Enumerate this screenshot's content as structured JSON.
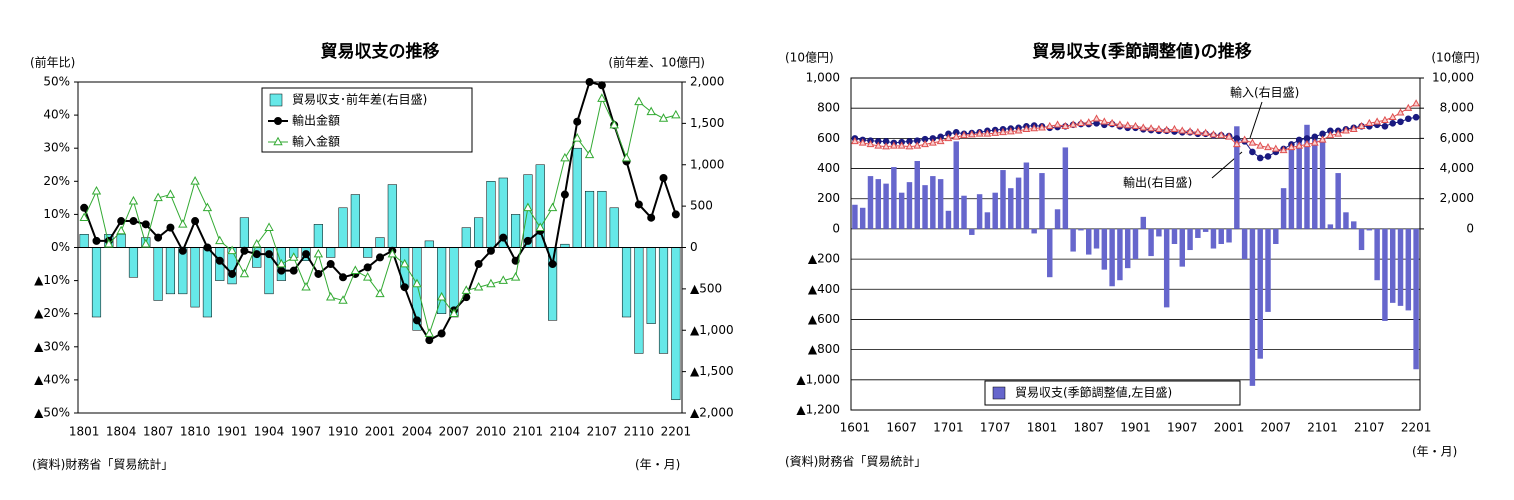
{
  "chart_data": [
    {
      "type": "combo",
      "title": "貿易収支の推移",
      "y_label": "(前年比)",
      "y2_label": "(前年差、10億円)",
      "x_unit": "(年・月)",
      "source": "(資料)財務省「貿易統計」",
      "categories": [
        "1801",
        null,
        null,
        "1804",
        null,
        null,
        "1807",
        null,
        null,
        "1810",
        null,
        null,
        "1901",
        null,
        null,
        "1904",
        null,
        null,
        "1907",
        null,
        null,
        "1910",
        null,
        null,
        "2001",
        null,
        null,
        "2004",
        null,
        null,
        "2007",
        null,
        null,
        "2010",
        null,
        null,
        "2101",
        null,
        null,
        "2104",
        null,
        null,
        "2107",
        null,
        null,
        "2110",
        null,
        null,
        "2201"
      ],
      "ylim": [
        -50,
        50
      ],
      "yticks": [
        {
          "value": 50,
          "label": "50%"
        },
        {
          "value": 40,
          "label": "40%"
        },
        {
          "value": 30,
          "label": "30%"
        },
        {
          "value": 20,
          "label": "20%"
        },
        {
          "value": 10,
          "label": "10%"
        },
        {
          "value": 0,
          "label": "0%"
        },
        {
          "value": -10,
          "label": "▲10%"
        },
        {
          "value": -20,
          "label": "▲20%"
        },
        {
          "value": -30,
          "label": "▲30%"
        },
        {
          "value": -40,
          "label": "▲40%"
        },
        {
          "value": -50,
          "label": "▲50%"
        }
      ],
      "y2lim": [
        -2000,
        2000
      ],
      "y2ticks": [
        {
          "value": 2000,
          "label": "2,000"
        },
        {
          "value": 1500,
          "label": "1,500"
        },
        {
          "value": 1000,
          "label": "1,000"
        },
        500,
        0,
        {
          "value": -500,
          "label": "▲500"
        },
        {
          "value": -1000,
          "label": "▲1,000"
        },
        {
          "value": -1500,
          "label": "▲1,500"
        },
        {
          "value": -2000,
          "label": "▲2,000"
        }
      ],
      "grid": false,
      "series": [
        {
          "name": "貿易収支･前年差(右目盛)",
          "type": "bar",
          "axis": "y2",
          "color": "#66e8e8",
          "values": [
            160,
            -840,
            160,
            160,
            -360,
            120,
            -640,
            -560,
            -560,
            -720,
            -840,
            -400,
            -440,
            360,
            -240,
            -560,
            -400,
            -120,
            -160,
            280,
            -120,
            480,
            640,
            -120,
            120,
            760,
            -480,
            -1000,
            80,
            -800,
            -840,
            240,
            360,
            800,
            840,
            400,
            880,
            1000,
            -880,
            40,
            1200,
            680,
            680,
            480,
            -840,
            -1280,
            -920,
            -1280,
            -1840
          ]
        },
        {
          "name": "輸出金額",
          "type": "line",
          "marker": "circle",
          "axis": "y",
          "color": "#000000",
          "values": [
            12,
            2,
            2,
            8,
            8,
            7,
            3,
            6,
            -1,
            8,
            0,
            -4,
            -8,
            -1,
            -2,
            -2,
            -7,
            -7,
            -2,
            -8,
            -5,
            -9,
            -8,
            -6,
            -3,
            -1,
            -12,
            -22,
            -28,
            -26,
            -19,
            -15,
            -5,
            -1,
            3,
            -4,
            2,
            5,
            -5,
            16,
            38,
            50,
            49,
            37,
            26,
            13,
            9,
            21,
            10
          ]
        },
        {
          "name": "輸入金額",
          "type": "line",
          "marker": "triangle",
          "axis": "y",
          "color": "#33aa33",
          "values": [
            9,
            17,
            1,
            5,
            14,
            1,
            15,
            16,
            7,
            20,
            12,
            2,
            -1,
            -8,
            1,
            6,
            -5,
            -3,
            -12,
            -2,
            -15,
            -16,
            -7,
            -9,
            -14,
            -2,
            -5,
            -11,
            -26,
            -15,
            -20,
            -13,
            -12,
            -11,
            -10,
            -9,
            12,
            6,
            12,
            27,
            33,
            28,
            45,
            37,
            27,
            44,
            41,
            39,
            40
          ]
        }
      ]
    },
    {
      "type": "combo",
      "title": "貿易収支(季節調整値)の推移",
      "y_label": "(10億円)",
      "y2_label": "(10億円)",
      "x_unit": "(年・月)",
      "source": "(資料)財務省「貿易統計」",
      "annotations": [
        "輸入(右目盛)",
        "輸出(右目盛)"
      ],
      "categories": [
        "1601",
        null,
        null,
        null,
        null,
        null,
        "1607",
        null,
        null,
        null,
        null,
        null,
        "1701",
        null,
        null,
        null,
        null,
        null,
        "1707",
        null,
        null,
        null,
        null,
        null,
        "1801",
        null,
        null,
        null,
        null,
        null,
        "1807",
        null,
        null,
        null,
        null,
        null,
        "1901",
        null,
        null,
        null,
        null,
        null,
        "1907",
        null,
        null,
        null,
        null,
        null,
        "2001",
        null,
        null,
        null,
        null,
        null,
        "2007",
        null,
        null,
        null,
        null,
        null,
        "2101",
        null,
        null,
        null,
        null,
        null,
        "2107",
        null,
        null,
        null,
        null,
        null,
        "2201"
      ],
      "ylim": [
        -1200,
        1000
      ],
      "yticks": [
        {
          "value": 1000,
          "label": "1,000"
        },
        800,
        600,
        400,
        200,
        0,
        {
          "value": -200,
          "label": "▲200"
        },
        {
          "value": -400,
          "label": "▲400"
        },
        {
          "value": -600,
          "label": "▲600"
        },
        {
          "value": -800,
          "label": "▲800"
        },
        {
          "value": -1000,
          "label": "▲1,000"
        },
        {
          "value": -1200,
          "label": "▲1,200"
        }
      ],
      "y2lim": [
        -12000,
        10000
      ],
      "y2ticks": [
        {
          "value": 10000,
          "label": "10,000"
        },
        {
          "value": 8000,
          "label": "8,000"
        },
        {
          "value": 6000,
          "label": "6,000"
        },
        {
          "value": 4000,
          "label": "4,000"
        },
        {
          "value": 2000,
          "label": "2,000"
        },
        0
      ],
      "grid": true,
      "series": [
        {
          "name": "貿易収支(季節調整値,左目盛)",
          "type": "bar",
          "axis": "y",
          "color": "#6666cc",
          "values": [
            160,
            140,
            350,
            330,
            300,
            410,
            240,
            310,
            450,
            290,
            350,
            330,
            120,
            580,
            220,
            -40,
            230,
            110,
            240,
            390,
            270,
            340,
            440,
            -30,
            370,
            -320,
            130,
            540,
            -150,
            -10,
            -170,
            -130,
            -270,
            -380,
            -340,
            -260,
            -200,
            80,
            -180,
            -50,
            -520,
            -100,
            -250,
            -140,
            -60,
            -20,
            -130,
            -100,
            -90,
            680,
            -200,
            -1040,
            -860,
            -550,
            -100,
            270,
            540,
            600,
            690,
            610,
            600,
            30,
            370,
            110,
            50,
            -140,
            -10,
            -340,
            -610,
            -490,
            -510,
            -540,
            -930
          ]
        },
        {
          "name": "輸出",
          "type": "line",
          "marker": "circle-filled",
          "axis": "y2",
          "color": "#1a1a80",
          "values": [
            6000,
            5900,
            5850,
            5800,
            5800,
            5700,
            5750,
            5800,
            5850,
            5950,
            6000,
            6100,
            6300,
            6400,
            6300,
            6350,
            6400,
            6500,
            6550,
            6600,
            6650,
            6700,
            6800,
            6850,
            6800,
            6700,
            6750,
            6800,
            6900,
            6950,
            6950,
            7000,
            6900,
            6950,
            6800,
            6700,
            6700,
            6600,
            6550,
            6500,
            6500,
            6450,
            6400,
            6400,
            6300,
            6300,
            6200,
            6200,
            6150,
            6000,
            5800,
            5100,
            4700,
            4800,
            5100,
            5300,
            5600,
            5900,
            6000,
            6100,
            6300,
            6500,
            6500,
            6600,
            6700,
            6800,
            6800,
            6900,
            6800,
            7000,
            7100,
            7300,
            7400
          ]
        },
        {
          "name": "輸入",
          "type": "line",
          "marker": "triangle",
          "axis": "y2",
          "color": "#e05050",
          "values": [
            5800,
            5700,
            5600,
            5500,
            5450,
            5500,
            5500,
            5450,
            5500,
            5600,
            5700,
            5800,
            6000,
            6100,
            6200,
            6250,
            6300,
            6300,
            6350,
            6400,
            6450,
            6500,
            6600,
            6650,
            6700,
            6800,
            6900,
            6800,
            6900,
            7000,
            7050,
            7300,
            7100,
            7000,
            6900,
            6850,
            6800,
            6700,
            6650,
            6600,
            6550,
            6600,
            6500,
            6450,
            6400,
            6350,
            6250,
            6200,
            6100,
            5600,
            5900,
            5700,
            5500,
            5400,
            5300,
            5200,
            5400,
            5500,
            5600,
            5700,
            5900,
            6200,
            6300,
            6500,
            6600,
            6800,
            7000,
            7100,
            7200,
            7400,
            7700,
            8000,
            8300
          ]
        }
      ]
    }
  ]
}
